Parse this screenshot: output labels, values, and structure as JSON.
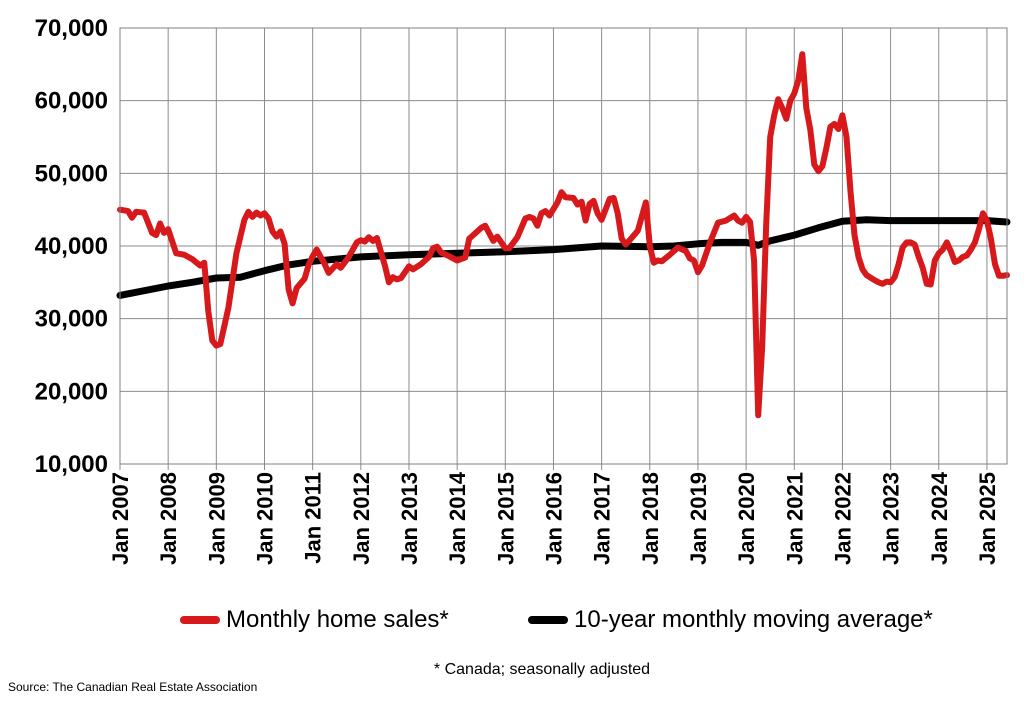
{
  "chart_data": {
    "type": "line",
    "title": "",
    "xlabel": "",
    "ylabel": "",
    "ylim": [
      10000,
      70000
    ],
    "yticks": [
      10000,
      20000,
      30000,
      40000,
      50000,
      60000,
      70000
    ],
    "ytick_labels": [
      "10,000",
      "20,000",
      "30,000",
      "40,000",
      "50,000",
      "60,000",
      "70,000"
    ],
    "xlim": [
      "2007-01",
      "2025-06"
    ],
    "xtick_labels": [
      "Jan 2007",
      "Jan 2008",
      "Jan 2009",
      "Jan 2010",
      "Jan 2011",
      "Jan 2012",
      "Jan 2013",
      "Jan 2014",
      "Jan 2015",
      "Jan 2016",
      "Jan 2017",
      "Jan 2018",
      "Jan 2019",
      "Jan 2020",
      "Jan 2021",
      "Jan 2022",
      "Jan 2023",
      "Jan 2024",
      "Jan 2025"
    ],
    "grid": true,
    "legend_position": "bottom",
    "series": [
      {
        "name": "Monthly home sales*",
        "color": "#d7191c",
        "points": [
          [
            "2007-01",
            45000
          ],
          [
            "2007-03",
            44800
          ],
          [
            "2007-04",
            43900
          ],
          [
            "2007-05",
            44700
          ],
          [
            "2007-07",
            44600
          ],
          [
            "2007-09",
            41800
          ],
          [
            "2007-10",
            41500
          ],
          [
            "2007-11",
            43100
          ],
          [
            "2007-12",
            41800
          ],
          [
            "2008-01",
            42300
          ],
          [
            "2008-03",
            39000
          ],
          [
            "2008-05",
            38800
          ],
          [
            "2008-07",
            38200
          ],
          [
            "2008-09",
            37300
          ],
          [
            "2008-10",
            37700
          ],
          [
            "2008-11",
            31000
          ],
          [
            "2008-12",
            27000
          ],
          [
            "2009-01",
            26300
          ],
          [
            "2009-02",
            26500
          ],
          [
            "2009-04",
            31500
          ],
          [
            "2009-06",
            39000
          ],
          [
            "2009-08",
            43600
          ],
          [
            "2009-09",
            44700
          ],
          [
            "2009-10",
            44000
          ],
          [
            "2009-11",
            44600
          ],
          [
            "2009-12",
            44200
          ],
          [
            "2010-01",
            44500
          ],
          [
            "2010-02",
            43800
          ],
          [
            "2010-03",
            42000
          ],
          [
            "2010-04",
            41300
          ],
          [
            "2010-05",
            42000
          ],
          [
            "2010-06",
            40300
          ],
          [
            "2010-07",
            34000
          ],
          [
            "2010-08",
            32100
          ],
          [
            "2010-09",
            34200
          ],
          [
            "2010-11",
            35500
          ],
          [
            "2010-12",
            37400
          ],
          [
            "2011-01",
            38600
          ],
          [
            "2011-02",
            39500
          ],
          [
            "2011-04",
            37500
          ],
          [
            "2011-05",
            36300
          ],
          [
            "2011-07",
            37500
          ],
          [
            "2011-08",
            37000
          ],
          [
            "2011-10",
            38500
          ],
          [
            "2011-12",
            40500
          ],
          [
            "2012-01",
            40800
          ],
          [
            "2012-02",
            40600
          ],
          [
            "2012-03",
            41200
          ],
          [
            "2012-04",
            40700
          ],
          [
            "2012-05",
            41100
          ],
          [
            "2012-07",
            37300
          ],
          [
            "2012-08",
            35000
          ],
          [
            "2012-09",
            35700
          ],
          [
            "2012-10",
            35400
          ],
          [
            "2012-11",
            35600
          ],
          [
            "2013-01",
            37200
          ],
          [
            "2013-02",
            36800
          ],
          [
            "2013-04",
            37500
          ],
          [
            "2013-06",
            38500
          ],
          [
            "2013-07",
            39700
          ],
          [
            "2013-08",
            39900
          ],
          [
            "2013-09",
            39100
          ],
          [
            "2013-11",
            38600
          ],
          [
            "2014-01",
            38000
          ],
          [
            "2014-03",
            38400
          ],
          [
            "2014-04",
            41000
          ],
          [
            "2014-06",
            42000
          ],
          [
            "2014-07",
            42500
          ],
          [
            "2014-08",
            42800
          ],
          [
            "2014-10",
            40700
          ],
          [
            "2014-11",
            41300
          ],
          [
            "2015-01",
            39700
          ],
          [
            "2015-02",
            39700
          ],
          [
            "2015-04",
            41200
          ],
          [
            "2015-06",
            43800
          ],
          [
            "2015-07",
            44000
          ],
          [
            "2015-08",
            43800
          ],
          [
            "2015-09",
            42800
          ],
          [
            "2015-10",
            44500
          ],
          [
            "2015-11",
            44800
          ],
          [
            "2015-12",
            44200
          ],
          [
            "2016-01",
            45100
          ],
          [
            "2016-02",
            46000
          ],
          [
            "2016-03",
            47400
          ],
          [
            "2016-04",
            46700
          ],
          [
            "2016-06",
            46600
          ],
          [
            "2016-07",
            45700
          ],
          [
            "2016-08",
            46100
          ],
          [
            "2016-09",
            43500
          ],
          [
            "2016-10",
            45800
          ],
          [
            "2016-11",
            46200
          ],
          [
            "2016-12",
            44500
          ],
          [
            "2017-01",
            43600
          ],
          [
            "2017-03",
            46500
          ],
          [
            "2017-04",
            46600
          ],
          [
            "2017-05",
            44500
          ],
          [
            "2017-06",
            41000
          ],
          [
            "2017-07",
            40200
          ],
          [
            "2017-08",
            40800
          ],
          [
            "2017-10",
            42100
          ],
          [
            "2017-12",
            46000
          ],
          [
            "2018-01",
            40000
          ],
          [
            "2018-02",
            37700
          ],
          [
            "2018-03",
            38000
          ],
          [
            "2018-04",
            37900
          ],
          [
            "2018-06",
            38800
          ],
          [
            "2018-08",
            39800
          ],
          [
            "2018-10",
            39300
          ],
          [
            "2018-11",
            38300
          ],
          [
            "2018-12",
            38000
          ],
          [
            "2019-01",
            36400
          ],
          [
            "2019-02",
            37300
          ],
          [
            "2019-04",
            40500
          ],
          [
            "2019-06",
            43200
          ],
          [
            "2019-08",
            43500
          ],
          [
            "2019-10",
            44200
          ],
          [
            "2019-11",
            43500
          ],
          [
            "2019-12",
            43200
          ],
          [
            "2020-01",
            44000
          ],
          [
            "2020-02",
            43300
          ],
          [
            "2020-03",
            38000
          ],
          [
            "2020-04",
            16700
          ],
          [
            "2020-05",
            26200
          ],
          [
            "2020-06",
            43000
          ],
          [
            "2020-07",
            55000
          ],
          [
            "2020-08",
            58000
          ],
          [
            "2020-09",
            60200
          ],
          [
            "2020-10",
            59000
          ],
          [
            "2020-11",
            57500
          ],
          [
            "2020-12",
            60000
          ],
          [
            "2021-01",
            61000
          ],
          [
            "2021-02",
            62800
          ],
          [
            "2021-03",
            66400
          ],
          [
            "2021-04",
            59000
          ],
          [
            "2021-05",
            56000
          ],
          [
            "2021-06",
            51200
          ],
          [
            "2021-07",
            50300
          ],
          [
            "2021-08",
            51000
          ],
          [
            "2021-09",
            53500
          ],
          [
            "2021-10",
            56400
          ],
          [
            "2021-11",
            56800
          ],
          [
            "2021-12",
            56100
          ],
          [
            "2022-01",
            58000
          ],
          [
            "2022-02",
            55000
          ],
          [
            "2022-03",
            47500
          ],
          [
            "2022-04",
            41500
          ],
          [
            "2022-05",
            38500
          ],
          [
            "2022-06",
            36800
          ],
          [
            "2022-07",
            36000
          ],
          [
            "2022-09",
            35300
          ],
          [
            "2022-10",
            35000
          ],
          [
            "2022-11",
            34800
          ],
          [
            "2022-12",
            35100
          ],
          [
            "2023-01",
            35000
          ],
          [
            "2023-02",
            35700
          ],
          [
            "2023-03",
            37500
          ],
          [
            "2023-04",
            39800
          ],
          [
            "2023-05",
            40500
          ],
          [
            "2023-06",
            40500
          ],
          [
            "2023-07",
            40200
          ],
          [
            "2023-08",
            38500
          ],
          [
            "2023-09",
            37000
          ],
          [
            "2023-10",
            34800
          ],
          [
            "2023-11",
            34700
          ],
          [
            "2023-12",
            38000
          ],
          [
            "2024-01",
            39000
          ],
          [
            "2024-02",
            39500
          ],
          [
            "2024-03",
            40500
          ],
          [
            "2024-04",
            39300
          ],
          [
            "2024-05",
            37800
          ],
          [
            "2024-06",
            38000
          ],
          [
            "2024-07",
            38500
          ],
          [
            "2024-08",
            38700
          ],
          [
            "2024-09",
            39500
          ],
          [
            "2024-10",
            40500
          ],
          [
            "2024-11",
            42300
          ],
          [
            "2024-12",
            44500
          ],
          [
            "2025-01",
            43500
          ],
          [
            "2025-02",
            41000
          ],
          [
            "2025-03",
            37500
          ],
          [
            "2025-04",
            35900
          ],
          [
            "2025-05",
            35900
          ],
          [
            "2025-06",
            36000
          ]
        ]
      },
      {
        "name": "10-year monthly moving average*",
        "color": "#000000",
        "points": [
          [
            "2007-01",
            33200
          ],
          [
            "2008-01",
            34500
          ],
          [
            "2008-07",
            35000
          ],
          [
            "2009-01",
            35600
          ],
          [
            "2009-07",
            35700
          ],
          [
            "2010-01",
            36600
          ],
          [
            "2010-07",
            37400
          ],
          [
            "2011-01",
            37900
          ],
          [
            "2012-01",
            38500
          ],
          [
            "2013-01",
            38800
          ],
          [
            "2014-01",
            39000
          ],
          [
            "2015-01",
            39200
          ],
          [
            "2016-01",
            39500
          ],
          [
            "2017-01",
            40000
          ],
          [
            "2018-01",
            39900
          ],
          [
            "2018-07",
            40000
          ],
          [
            "2019-01",
            40300
          ],
          [
            "2019-07",
            40500
          ],
          [
            "2020-01",
            40500
          ],
          [
            "2020-04",
            40100
          ],
          [
            "2020-07",
            40700
          ],
          [
            "2021-01",
            41500
          ],
          [
            "2021-07",
            42500
          ],
          [
            "2022-01",
            43400
          ],
          [
            "2022-07",
            43600
          ],
          [
            "2023-01",
            43500
          ],
          [
            "2024-01",
            43500
          ],
          [
            "2025-01",
            43500
          ],
          [
            "2025-06",
            43300
          ]
        ]
      }
    ]
  },
  "footer": {
    "note": "* Canada; seasonally adjusted",
    "source": "Source: The Canadian Real Estate Association"
  }
}
